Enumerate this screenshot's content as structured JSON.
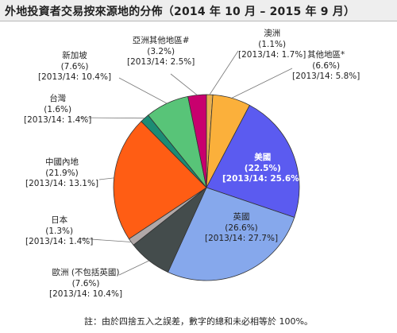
{
  "title": "外地投資者交易按來源地的分佈（2014 年 10 月 – 2015 年 9 月）",
  "note": "註：由於四捨五入之誤差，數字的總和未必相等於 100%。",
  "colors": {
    "澳洲": "#e8b050",
    "其他地區": "#fbb03b",
    "美國": "#5b5bf0",
    "英國": "#86a8ec",
    "歐洲 (不包括英國)": "#444c4c",
    "日本": "#b0a8a8",
    "中國內地": "#ff5d14",
    "台灣": "#1c8c74",
    "新加坡": "#58c478",
    "亞洲其他地區#": "#c8006e"
  },
  "chart_data": {
    "type": "pie",
    "title": "外地投資者交易按來源地的分佈（2014 年 10 月 – 2015 年 9 月）",
    "slices": [
      {
        "name": "澳洲",
        "value": 1.1,
        "pct": "(1.1%)",
        "prev": "[2013/14: 1.7%]"
      },
      {
        "name": "其他地區*",
        "value": 6.6,
        "pct": "(6.6%)",
        "prev": "[2013/14: 5.8%]"
      },
      {
        "name": "美國",
        "value": 22.5,
        "pct": "(22.5%)",
        "prev": "[2013/14: 25.6%]"
      },
      {
        "name": "英國",
        "value": 26.6,
        "pct": "(26.6%)",
        "prev": "[2013/14: 27.7%]"
      },
      {
        "name": "歐洲 (不包括英國)",
        "value": 7.6,
        "pct": "(7.6%)",
        "prev": "[2013/14: 10.4%]"
      },
      {
        "name": "日本",
        "value": 1.3,
        "pct": "(1.3%)",
        "prev": "[2013/14: 1.4%]"
      },
      {
        "name": "中國內地",
        "value": 21.9,
        "pct": "(21.9%)",
        "prev": "[2013/14: 13.1%]"
      },
      {
        "name": "台灣",
        "value": 1.6,
        "pct": "(1.6%)",
        "prev": "[2013/14: 1.4%]"
      },
      {
        "name": "新加坡",
        "value": 7.6,
        "pct": "(7.6%)",
        "prev": "[2013/14: 10.4%]"
      },
      {
        "name": "亞洲其他地區#",
        "value": 3.2,
        "pct": "(3.2%)",
        "prev": "[2013/14: 2.5%]"
      }
    ]
  }
}
